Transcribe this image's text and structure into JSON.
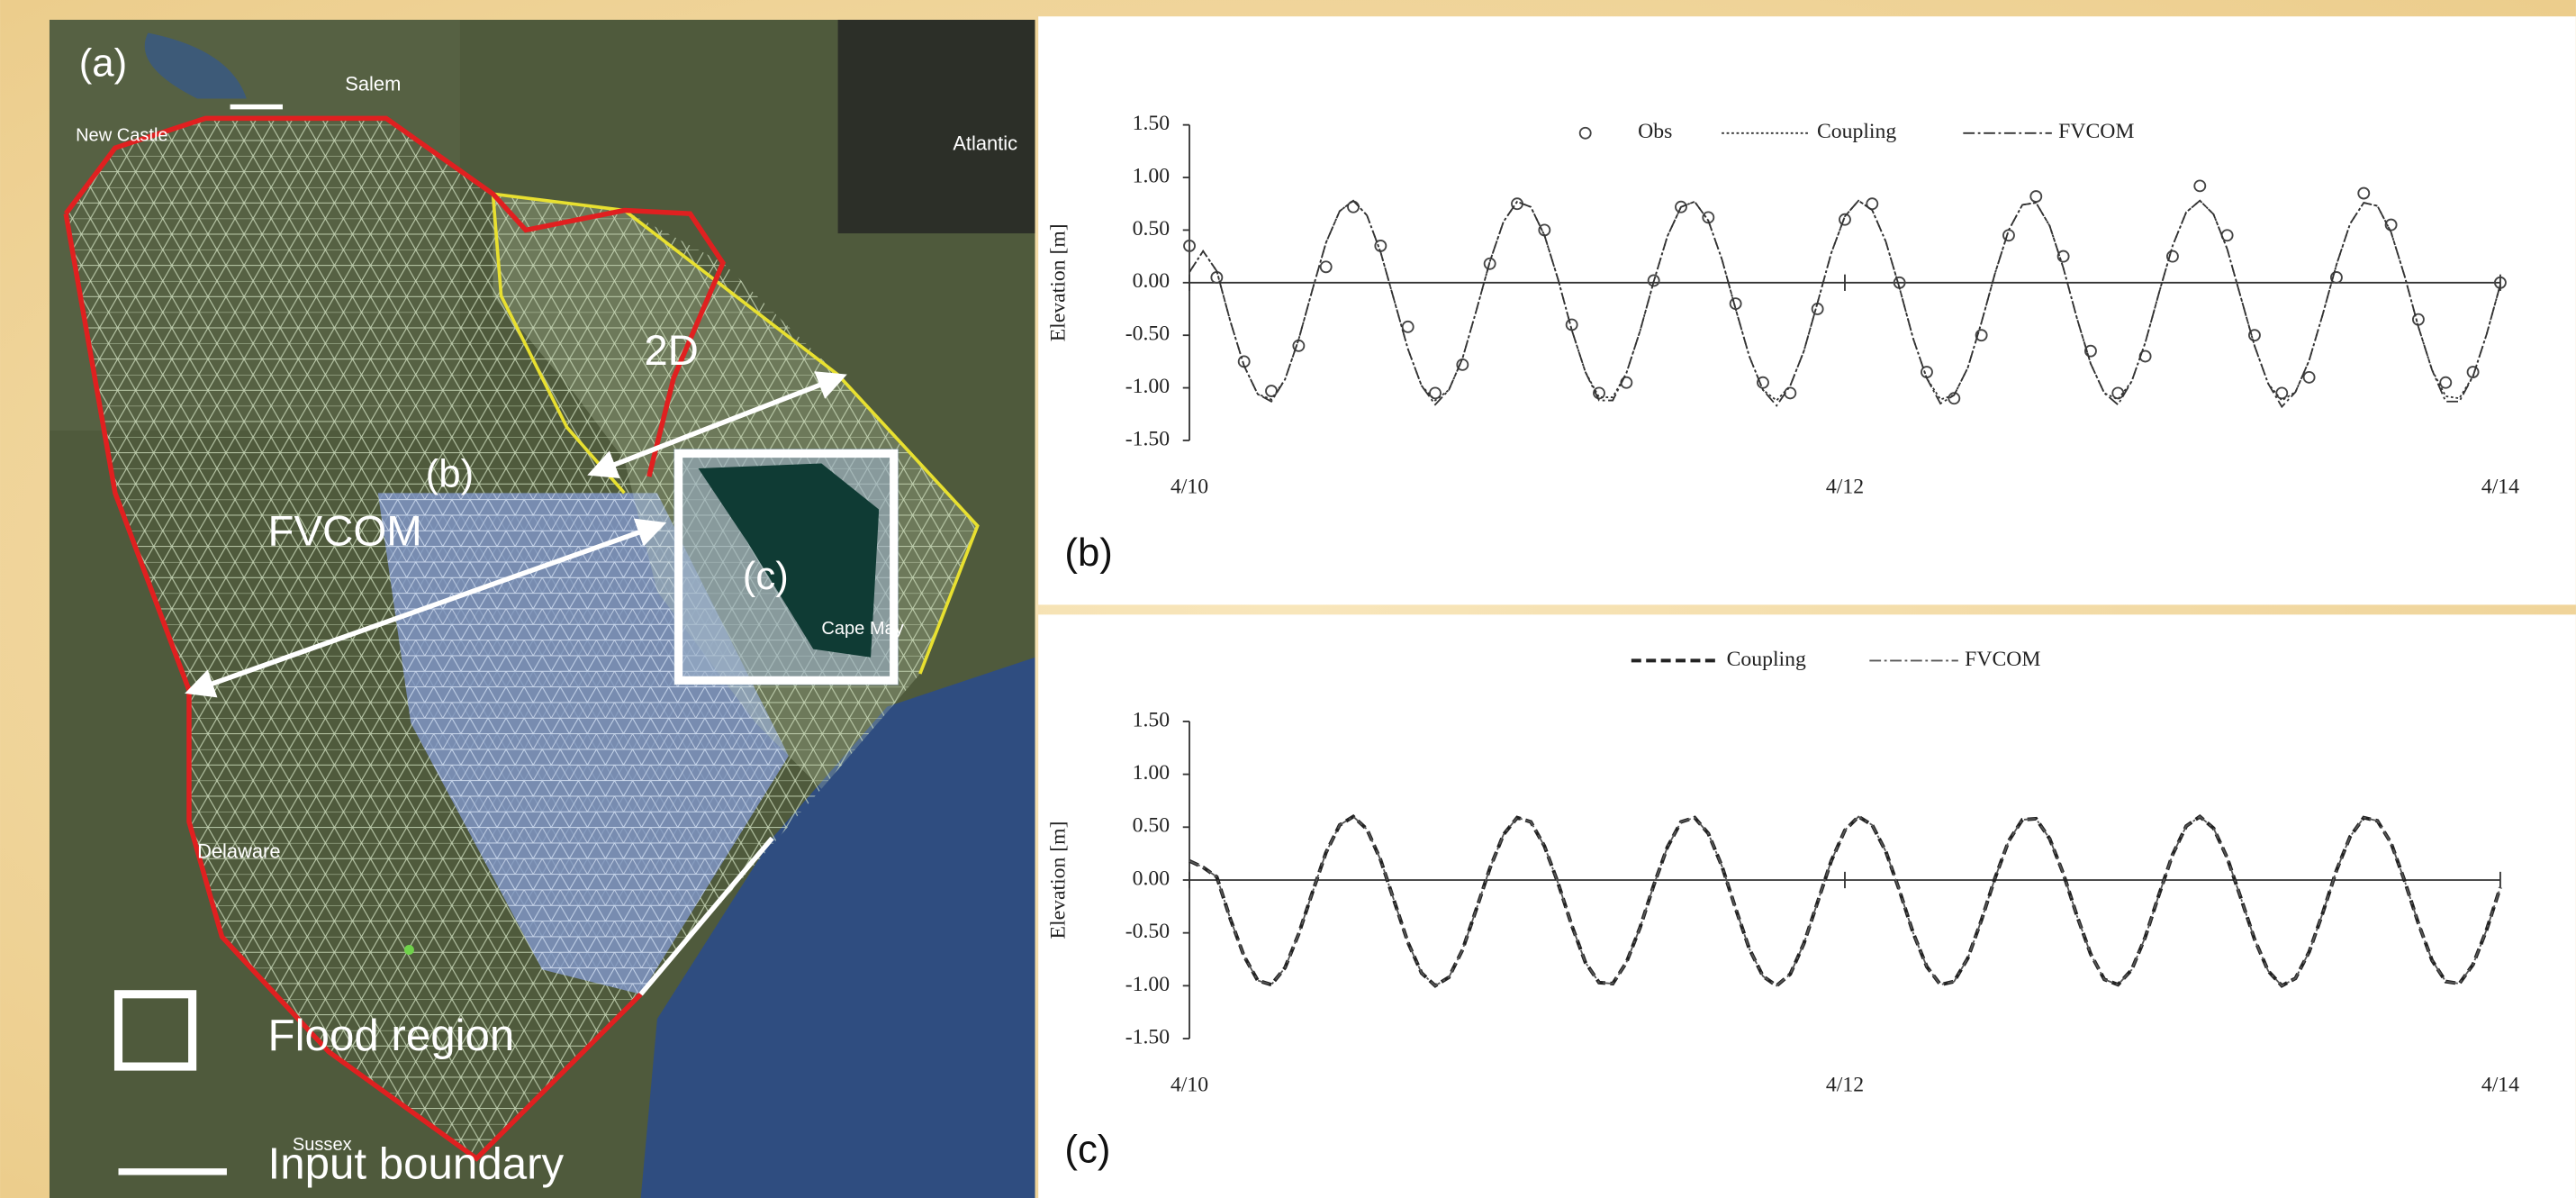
{
  "map": {
    "panel_label": "(a)",
    "places": [
      "Salem",
      "New Castle",
      "Atlantic",
      "Delaware",
      "Cape May",
      "Sussex"
    ],
    "region_labels": [
      "2D",
      "(b)",
      "FVCOM",
      "(c)"
    ],
    "legend": [
      "Flood region",
      "Input boundary"
    ]
  },
  "chart_data": [
    {
      "type": "line",
      "panel_label": "(b)",
      "ylabel": "Elevation [m]",
      "xlim": [
        0,
        96
      ],
      "xticks": [
        {
          "value": 0,
          "label": "4/10"
        },
        {
          "value": 48,
          "label": "4/12"
        },
        {
          "value": 96,
          "label": "4/14"
        }
      ],
      "ylim": [
        -1.5,
        1.5
      ],
      "yticks": [
        {
          "value": 1.5,
          "label": "1.50"
        },
        {
          "value": 1,
          "label": "1.00"
        },
        {
          "value": 0.5,
          "label": "0.50"
        },
        {
          "value": 0,
          "label": "0.00"
        },
        {
          "value": -0.5,
          "label": "-0.50"
        },
        {
          "value": -1,
          "label": "-1.00"
        },
        {
          "value": -1.5,
          "label": "-1.50"
        }
      ],
      "x": [
        0,
        1,
        2,
        3,
        4,
        5,
        6,
        7,
        8,
        9,
        10,
        11,
        12,
        13,
        14,
        15,
        16,
        17,
        18,
        19,
        20,
        21,
        22,
        23,
        24,
        25,
        26,
        27,
        28,
        29,
        30,
        31,
        32,
        33,
        34,
        35,
        36,
        37,
        38,
        39,
        40,
        41,
        42,
        43,
        44,
        45,
        46,
        47,
        48,
        49,
        50,
        51,
        52,
        53,
        54,
        55,
        56,
        57,
        58,
        59,
        60,
        61,
        62,
        63,
        64,
        65,
        66,
        67,
        68,
        69,
        70,
        71,
        72,
        73,
        74,
        75,
        76,
        77,
        78,
        79,
        80,
        81,
        82,
        83,
        84,
        85,
        86,
        87,
        88,
        89,
        90,
        91,
        92,
        93,
        94,
        95,
        96
      ],
      "series": [
        {
          "name": "Obs",
          "style": "circles",
          "color": "#444444",
          "x": [
            0,
            2,
            4,
            6,
            8,
            10,
            12,
            14,
            16,
            18,
            20,
            22,
            24,
            26,
            28,
            30,
            32,
            34,
            36,
            38,
            40,
            42,
            44,
            46,
            48,
            50,
            52,
            54,
            56,
            58,
            60,
            62,
            64,
            66,
            68,
            70,
            72,
            74,
            76,
            78,
            80,
            82,
            84,
            86,
            88,
            90,
            92,
            94,
            96
          ],
          "values": [
            0.35,
            0.05,
            -0.75,
            -1.03,
            -0.6,
            0.15,
            0.72,
            0.35,
            -0.42,
            -1.05,
            -0.78,
            0.18,
            0.75,
            0.5,
            -0.4,
            -1.05,
            -0.95,
            0.02,
            0.72,
            0.62,
            -0.2,
            -0.95,
            -1.05,
            -0.25,
            0.6,
            0.75,
            0,
            -0.85,
            -1.1,
            -0.5,
            0.45,
            0.82,
            0.25,
            -0.65,
            -1.05,
            -0.7,
            0.25,
            0.92,
            0.45,
            -0.5,
            -1.05,
            -0.9,
            0.05,
            0.85,
            0.55,
            -0.35,
            -0.95,
            -0.85,
            0
          ]
        },
        {
          "name": "Coupling",
          "style": "dotted",
          "color": "#333333",
          "values": [
            0.1,
            0.3,
            0.11,
            -0.37,
            -0.79,
            -1.06,
            -1.11,
            -0.92,
            -0.54,
            -0.07,
            0.38,
            0.68,
            0.78,
            0.64,
            0.29,
            -0.17,
            -0.63,
            -0.98,
            -1.12,
            -1.02,
            -0.72,
            -0.27,
            0.2,
            0.58,
            0.77,
            0.72,
            0.45,
            0.03,
            -0.45,
            -0.85,
            -1.09,
            -1.09,
            -0.86,
            -0.46,
            0.01,
            0.44,
            0.72,
            0.77,
            0.59,
            0.22,
            -0.25,
            -0.7,
            -1.02,
            -1.12,
            -0.98,
            -0.65,
            -0.19,
            0.28,
            0.63,
            0.78,
            0.69,
            0.39,
            -0.05,
            -0.53,
            -0.91,
            -1.11,
            -1.07,
            -0.81,
            -0.38,
            0.09,
            0.5,
            0.74,
            0.76,
            0.54,
            0.14,
            -0.34,
            -0.77,
            -1.05,
            -1.11,
            -0.94,
            -0.57,
            -0.1,
            0.35,
            0.67,
            0.78,
            0.65,
            0.32,
            -0.14,
            -0.6,
            -0.96,
            -1.12,
            -1.04,
            -0.74,
            -0.3,
            0.17,
            0.56,
            0.76,
            0.73,
            0.48,
            0.06,
            -0.42,
            -0.83,
            -1.08,
            -1.1,
            -0.89,
            -0.49,
            -0.02
          ]
        },
        {
          "name": "FVCOM",
          "style": "dashdot",
          "color": "#333333",
          "values": [
            0.1,
            0.3,
            0.11,
            -0.37,
            -0.79,
            -1.06,
            -1.13,
            -0.92,
            -0.54,
            -0.07,
            0.38,
            0.68,
            0.78,
            0.64,
            0.29,
            -0.17,
            -0.63,
            -0.98,
            -1.16,
            -1.02,
            -0.72,
            -0.27,
            0.2,
            0.58,
            0.77,
            0.72,
            0.45,
            0.03,
            -0.45,
            -0.85,
            -1.12,
            -1.12,
            -0.86,
            -0.46,
            0.01,
            0.44,
            0.72,
            0.77,
            0.59,
            0.22,
            -0.25,
            -0.7,
            -1.02,
            -1.17,
            -0.98,
            -0.65,
            -0.19,
            0.28,
            0.63,
            0.78,
            0.69,
            0.39,
            -0.05,
            -0.53,
            -0.91,
            -1.15,
            -1.07,
            -0.81,
            -0.38,
            0.09,
            0.5,
            0.74,
            0.76,
            0.54,
            0.14,
            -0.34,
            -0.77,
            -1.05,
            -1.16,
            -0.94,
            -0.57,
            -0.1,
            0.35,
            0.67,
            0.78,
            0.65,
            0.32,
            -0.14,
            -0.6,
            -0.96,
            -1.18,
            -1.04,
            -0.74,
            -0.3,
            0.17,
            0.56,
            0.76,
            0.73,
            0.48,
            0.06,
            -0.42,
            -0.83,
            -1.13,
            -1.13,
            -0.89,
            -0.49,
            -0.02
          ]
        }
      ]
    },
    {
      "type": "line",
      "panel_label": "(c)",
      "ylabel": "Elevation [m]",
      "xlim": [
        0,
        96
      ],
      "xticks": [
        {
          "value": 0,
          "label": "4/10"
        },
        {
          "value": 48,
          "label": "4/12"
        },
        {
          "value": 96,
          "label": "4/14"
        }
      ],
      "ylim": [
        -1.5,
        1.5
      ],
      "yticks": [
        {
          "value": 1.5,
          "label": "1.50"
        },
        {
          "value": 1,
          "label": "1.00"
        },
        {
          "value": 0.5,
          "label": "0.50"
        },
        {
          "value": 0,
          "label": "0.00"
        },
        {
          "value": -0.5,
          "label": "-0.50"
        },
        {
          "value": -1,
          "label": "-1.00"
        },
        {
          "value": -1.5,
          "label": "-1.50"
        }
      ],
      "x": [
        0,
        1,
        2,
        3,
        4,
        5,
        6,
        7,
        8,
        9,
        10,
        11,
        12,
        13,
        14,
        15,
        16,
        17,
        18,
        19,
        20,
        21,
        22,
        23,
        24,
        25,
        26,
        27,
        28,
        29,
        30,
        31,
        32,
        33,
        34,
        35,
        36,
        37,
        38,
        39,
        40,
        41,
        42,
        43,
        44,
        45,
        46,
        47,
        48,
        49,
        50,
        51,
        52,
        53,
        54,
        55,
        56,
        57,
        58,
        59,
        60,
        61,
        62,
        63,
        64,
        65,
        66,
        67,
        68,
        69,
        70,
        71,
        72,
        73,
        74,
        75,
        76,
        77,
        78,
        79,
        80,
        81,
        82,
        83,
        84,
        85,
        86,
        87,
        88,
        89,
        90,
        91,
        92,
        93,
        94,
        95,
        96
      ],
      "series": [
        {
          "name": "Coupling",
          "style": "dashed",
          "color": "#222222",
          "values": [
            0.18,
            0.12,
            0.03,
            -0.37,
            -0.72,
            -0.95,
            -0.99,
            -0.83,
            -0.51,
            -0.12,
            0.26,
            0.52,
            0.6,
            0.48,
            0.19,
            -0.2,
            -0.59,
            -0.88,
            -1,
            -0.92,
            -0.66,
            -0.28,
            0.11,
            0.43,
            0.59,
            0.55,
            0.32,
            -0.03,
            -0.43,
            -0.78,
            -0.97,
            -0.98,
            -0.78,
            -0.45,
            -0.05,
            0.31,
            0.55,
            0.59,
            0.44,
            0.13,
            -0.27,
            -0.65,
            -0.91,
            -1,
            -0.89,
            -0.6,
            -0.21,
            0.18,
            0.47,
            0.6,
            0.52,
            0.27,
            -0.1,
            -0.5,
            -0.82,
            -0.99,
            -0.96,
            -0.74,
            -0.38,
            0.02,
            0.37,
            0.57,
            0.58,
            0.39,
            0.06,
            -0.34,
            -0.7,
            -0.94,
            -0.99,
            -0.85,
            -0.54,
            -0.14,
            0.24,
            0.51,
            0.6,
            0.49,
            0.21,
            -0.17,
            -0.56,
            -0.86,
            -1,
            -0.93,
            -0.68,
            -0.31,
            0.09,
            0.41,
            0.59,
            0.56,
            0.35,
            -0.01,
            -0.41,
            -0.76,
            -0.96,
            -0.98,
            -0.8,
            -0.47,
            -0.07
          ]
        },
        {
          "name": "FVCOM",
          "style": "dashdot",
          "color": "#555555",
          "values": [
            0.18,
            0.12,
            0.03,
            -0.37,
            -0.72,
            -0.95,
            -0.99,
            -0.83,
            -0.51,
            -0.12,
            0.26,
            0.52,
            0.6,
            0.48,
            0.19,
            -0.2,
            -0.59,
            -0.88,
            -1,
            -0.92,
            -0.66,
            -0.28,
            0.11,
            0.43,
            0.59,
            0.55,
            0.32,
            -0.03,
            -0.43,
            -0.78,
            -0.97,
            -0.98,
            -0.78,
            -0.45,
            -0.05,
            0.31,
            0.55,
            0.59,
            0.44,
            0.13,
            -0.27,
            -0.65,
            -0.91,
            -1,
            -0.89,
            -0.6,
            -0.21,
            0.18,
            0.47,
            0.6,
            0.52,
            0.27,
            -0.1,
            -0.5,
            -0.82,
            -0.99,
            -0.96,
            -0.74,
            -0.38,
            0.02,
            0.37,
            0.57,
            0.58,
            0.39,
            0.06,
            -0.34,
            -0.7,
            -0.94,
            -0.99,
            -0.85,
            -0.54,
            -0.14,
            0.24,
            0.51,
            0.6,
            0.49,
            0.21,
            -0.17,
            -0.56,
            -0.86,
            -1,
            -0.93,
            -0.68,
            -0.31,
            0.09,
            0.41,
            0.59,
            0.56,
            0.35,
            -0.01,
            -0.41,
            -0.76,
            -0.96,
            -0.98,
            -0.8,
            -0.47,
            -0.07
          ]
        }
      ]
    }
  ]
}
